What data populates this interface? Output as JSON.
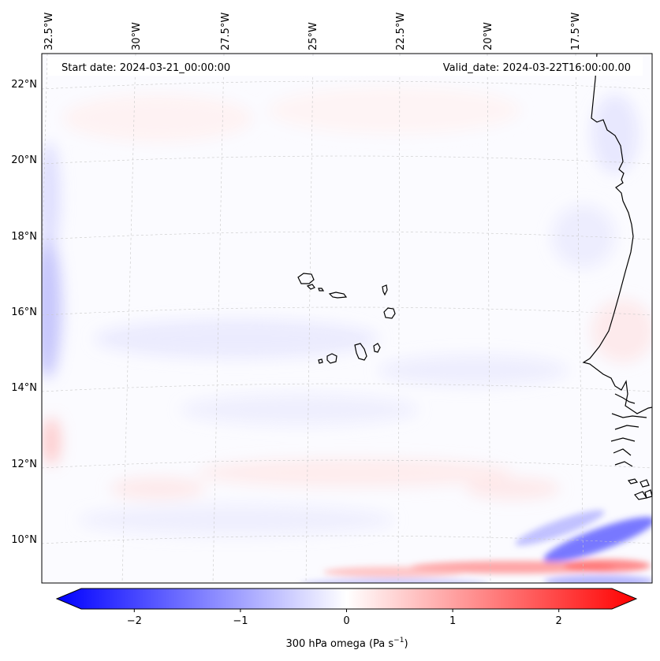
{
  "map": {
    "start_date": "Start date: 2024-03-21_00:00:00",
    "valid_date": "Valid_date: 2024-03-22T16:00:00.00",
    "lon_labels": [
      "32.5°W",
      "30°W",
      "27.5°W",
      "25°W",
      "22.5°W",
      "20°W",
      "17.5°W"
    ],
    "lat_labels": [
      "22°N",
      "20°N",
      "18°N",
      "16°N",
      "14°N",
      "12°N",
      "10°N"
    ],
    "colors": {
      "negative": "#0000ff",
      "neutral": "#ffffff",
      "positive": "#ff0000",
      "coastline": "#000000",
      "gridline": "#c8c8c8"
    }
  },
  "colorbar": {
    "label": "300 hPa omega (Pa s",
    "label_sup": "−1",
    "label_close": ")",
    "ticks": [
      "−2",
      "−1",
      "0",
      "1",
      "2"
    ],
    "tick_values": [
      -2,
      -1,
      0,
      1,
      2
    ],
    "vmin": -2.5,
    "vmax": 2.5
  }
}
